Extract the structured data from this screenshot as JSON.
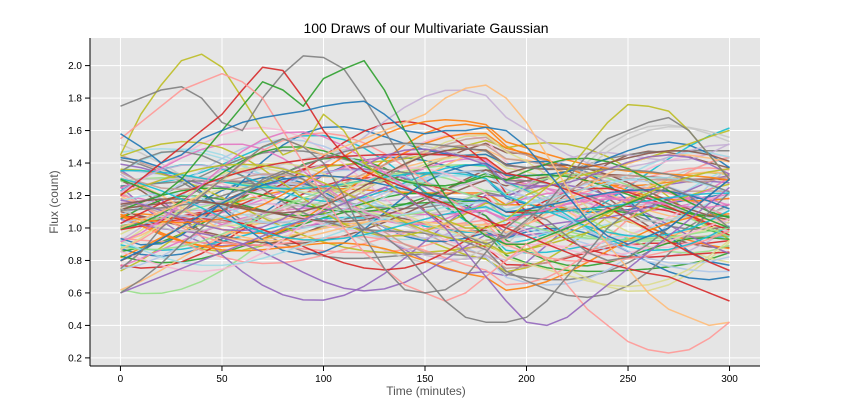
{
  "chart_data": {
    "type": "line",
    "title": "100 Draws of our Multivariate Gaussian",
    "xlabel": "Time (minutes)",
    "ylabel": "Flux (count)",
    "xlim": [
      -15,
      315
    ],
    "ylim": [
      0.15,
      2.17
    ],
    "x_ticks": [
      0,
      50,
      100,
      150,
      200,
      250,
      300
    ],
    "y_ticks": [
      0.2,
      0.4,
      0.6,
      0.8,
      1.0,
      1.2,
      1.4,
      1.6,
      1.8,
      2.0
    ],
    "grid": true,
    "legend": "none",
    "colors": [
      "#1f77b4",
      "#ff7f0e",
      "#2ca02c",
      "#d62728",
      "#9467bd",
      "#8c564b",
      "#e377c2",
      "#7f7f7f",
      "#bcbd22",
      "#17becf",
      "#aec7e8",
      "#ffbb78",
      "#98df8a",
      "#ff9896",
      "#c5b0d5",
      "#c49c94",
      "#f7b6d2",
      "#c7c7c7",
      "#dbdb8d",
      "#9edae5"
    ],
    "series_count": 100,
    "x": [
      0,
      10,
      20,
      30,
      40,
      50,
      60,
      70,
      80,
      90,
      100,
      110,
      120,
      130,
      140,
      150,
      160,
      170,
      180,
      190,
      200,
      210,
      220,
      230,
      240,
      250,
      260,
      270,
      280,
      290,
      300
    ],
    "series_highlights": [
      {
        "color": "#bcbd22",
        "values": [
          1.45,
          1.7,
          1.88,
          2.03,
          2.07,
          1.99,
          1.8,
          1.6,
          1.45,
          1.5,
          1.7,
          1.6,
          1.4,
          1.3,
          1.2,
          1.1,
          1.05,
          1.0,
          1.0,
          1.05,
          1.15,
          1.25,
          1.35,
          1.5,
          1.65,
          1.76,
          1.75,
          1.72,
          1.6,
          1.45,
          1.3
        ]
      },
      {
        "color": "#7f7f7f",
        "values": [
          1.75,
          1.8,
          1.85,
          1.87,
          1.8,
          1.65,
          1.6,
          1.8,
          1.95,
          2.06,
          2.05,
          1.98,
          1.8,
          1.6,
          1.4,
          1.2,
          1.05,
          0.95,
          0.9,
          0.95,
          1.05,
          1.15,
          1.3,
          1.45,
          1.55,
          1.6,
          1.65,
          1.68,
          1.6,
          1.45,
          1.3
        ]
      },
      {
        "color": "#d62728",
        "values": [
          1.2,
          1.3,
          1.4,
          1.5,
          1.6,
          1.7,
          1.85,
          1.99,
          1.97,
          1.8,
          1.6,
          1.45,
          1.35,
          1.3,
          1.25,
          1.2,
          1.15,
          1.1,
          1.05,
          1.0,
          0.95,
          0.9,
          0.85,
          0.8,
          0.78,
          0.75,
          0.72,
          0.7,
          0.65,
          0.6,
          0.55
        ]
      },
      {
        "color": "#2ca02c",
        "values": [
          1.3,
          1.25,
          1.2,
          1.3,
          1.45,
          1.6,
          1.75,
          1.9,
          1.85,
          1.75,
          1.92,
          1.98,
          2.03,
          1.85,
          1.6,
          1.4,
          1.2,
          1.05,
          0.95,
          0.9,
          0.9,
          0.95,
          1.0,
          1.05,
          1.1,
          1.15,
          1.2,
          1.15,
          1.1,
          1.05,
          1.0
        ]
      },
      {
        "color": "#ffbb78",
        "values": [
          1.0,
          1.05,
          1.1,
          1.15,
          1.2,
          1.3,
          1.4,
          1.5,
          1.55,
          1.5,
          1.45,
          1.5,
          1.55,
          1.6,
          1.65,
          1.7,
          1.8,
          1.86,
          1.88,
          1.8,
          1.65,
          1.45,
          1.25,
          1.05,
          0.9,
          0.75,
          0.6,
          0.5,
          0.45,
          0.4,
          0.42
        ]
      },
      {
        "color": "#ff9896",
        "values": [
          1.55,
          1.65,
          1.75,
          1.85,
          1.9,
          1.95,
          1.9,
          1.8,
          1.6,
          1.4,
          1.2,
          1.0,
          0.85,
          0.75,
          0.65,
          0.6,
          0.55,
          0.6,
          0.7,
          0.8,
          0.9,
          0.8,
          0.65,
          0.5,
          0.4,
          0.3,
          0.25,
          0.23,
          0.25,
          0.32,
          0.42
        ]
      },
      {
        "color": "#9467bd",
        "values": [
          0.6,
          0.65,
          0.7,
          0.75,
          0.8,
          0.85,
          0.9,
          0.95,
          1.0,
          1.05,
          1.1,
          1.15,
          1.2,
          1.25,
          1.2,
          1.1,
          1.0,
          0.85,
          0.7,
          0.55,
          0.42,
          0.4,
          0.45,
          0.55,
          0.65,
          0.75,
          0.85,
          0.95,
          1.05,
          1.15,
          1.25
        ]
      },
      {
        "color": "#7f7f7f",
        "values": [
          0.75,
          0.85,
          1.0,
          1.1,
          1.2,
          1.3,
          1.4,
          1.5,
          1.55,
          1.5,
          1.4,
          1.2,
          0.95,
          0.75,
          0.62,
          0.6,
          0.62,
          0.7,
          0.85,
          1.0,
          1.1,
          1.05,
          0.95,
          0.85,
          0.8,
          0.82,
          0.9,
          1.0,
          1.1,
          1.2,
          1.3
        ]
      },
      {
        "color": "#7f7f7f",
        "values": [
          0.6,
          0.68,
          0.78,
          0.9,
          1.0,
          1.1,
          1.2,
          1.3,
          1.35,
          1.3,
          1.2,
          1.1,
          1.0,
          0.95,
          0.85,
          0.7,
          0.55,
          0.45,
          0.42,
          0.42,
          0.45,
          0.55,
          0.7,
          0.85,
          1.0,
          1.1,
          1.2,
          1.25,
          1.2,
          1.1,
          1.0
        ]
      },
      {
        "color": "#1f77b4",
        "values": [
          1.58,
          1.5,
          1.4,
          1.45,
          1.55,
          1.6,
          1.65,
          1.68,
          1.7,
          1.72,
          1.75,
          1.77,
          1.78,
          1.7,
          1.6,
          1.58,
          1.6,
          1.6,
          1.62,
          1.6,
          1.5,
          1.35,
          1.2,
          1.05,
          0.95,
          0.9,
          0.95,
          1.0,
          1.1,
          1.2,
          1.3
        ]
      }
    ]
  }
}
